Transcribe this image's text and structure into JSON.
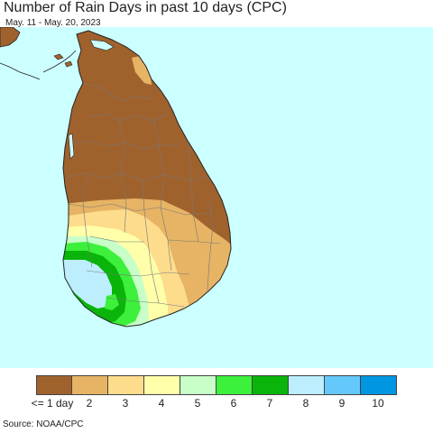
{
  "title": "Number of Rain Days in past 10 days (CPC)",
  "date_range": "May. 11 - May. 20, 2023",
  "source": "Source: NOAA/CPC",
  "colors": {
    "ocean": "#ccffff",
    "border": "#777777",
    "coast": "#222222"
  },
  "legend": {
    "bins": [
      {
        "label": "<= 1 day",
        "color": "#a0622d"
      },
      {
        "label": "2",
        "color": "#e6b464"
      },
      {
        "label": "3",
        "color": "#fddc8c"
      },
      {
        "label": "4",
        "color": "#ffffaa"
      },
      {
        "label": "5",
        "color": "#c8ffc8"
      },
      {
        "label": "6",
        "color": "#3cf03c"
      },
      {
        "label": "7",
        "color": "#0ab40a"
      },
      {
        "label": "8",
        "color": "#bdeefe"
      },
      {
        "label": "9",
        "color": "#64c8fa"
      },
      {
        "label": "10",
        "color": "#0096e1"
      }
    ]
  }
}
